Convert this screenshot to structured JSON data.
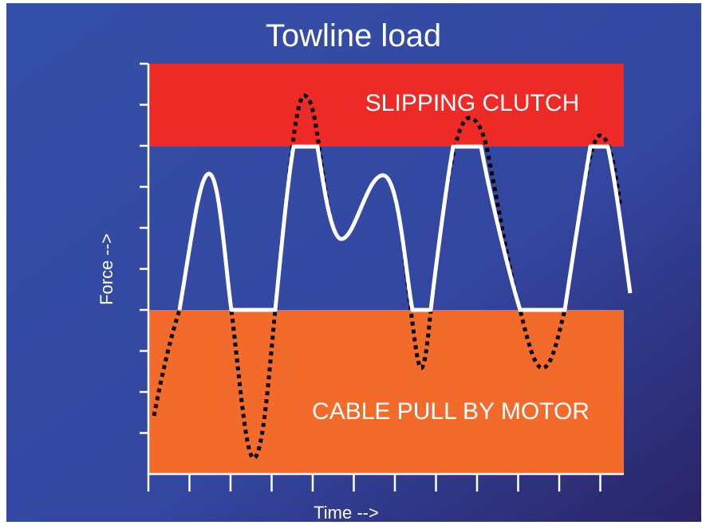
{
  "title": "Towline load",
  "axes": {
    "y_label": "Force -->",
    "x_label": "Time -->"
  },
  "regions": [
    {
      "label": "SLIPPING CLUTCH"
    },
    {
      "label": "CABLE PULL BY MOTOR"
    }
  ]
}
